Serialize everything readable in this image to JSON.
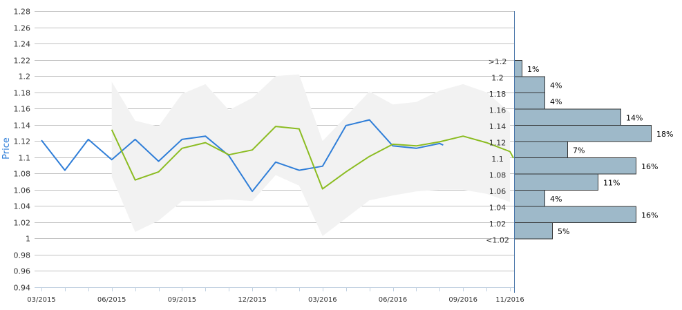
{
  "chart_data": {
    "type": "line",
    "ylabel": "Price",
    "ylim": [
      0.94,
      1.28
    ],
    "y_ticks": [
      "0.94",
      "0.96",
      "0.98",
      "1",
      "1.02",
      "1.04",
      "1.06",
      "1.08",
      "1.1",
      "1.12",
      "1.14",
      "1.16",
      "1.18",
      "1.2",
      "1.22",
      "1.24",
      "1.26",
      "1.28"
    ],
    "x_tick_labels": [
      "03/2015",
      "06/2015",
      "09/2015",
      "12/2015",
      "03/2016",
      "06/2016",
      "09/2016",
      "11/2016"
    ],
    "grid": true,
    "colors": {
      "blue": "#2f7ed8",
      "green": "#8bbc21",
      "band": "#f2f2f2",
      "hist_fill": "#9eb9c9",
      "hist_stroke": "#333333",
      "grid": "#c0c0c0"
    },
    "series": [
      {
        "x": [
          "03/2015",
          "04/2015",
          "05/2015",
          "06/2015",
          "07/2015",
          "08/2015",
          "09/2015",
          "10/2015",
          "11/2015",
          "12/2015",
          "01/2016",
          "02/2016",
          "03/2016",
          "04/2016",
          "05/2016",
          "06/2016",
          "07/2016",
          "08/2016",
          "08/2016b"
        ],
        "values": [
          1.121,
          1.084,
          1.122,
          1.097,
          1.122,
          1.095,
          1.122,
          1.126,
          1.102,
          1.058,
          1.094,
          1.084,
          1.089,
          1.139,
          1.146,
          1.114,
          1.111,
          1.117,
          1.115
        ]
      },
      {
        "x": [
          "06/2015",
          "07/2015",
          "08/2015",
          "09/2015",
          "10/2015",
          "11/2015",
          "12/2015",
          "01/2016",
          "02/2016",
          "03/2016",
          "04/2016",
          "05/2016",
          "06/2016",
          "07/2016",
          "08/2016",
          "09/2016",
          "10/2016",
          "11/2016",
          "11/2016b"
        ],
        "values": [
          1.134,
          1.072,
          1.082,
          1.111,
          1.118,
          1.103,
          1.109,
          1.138,
          1.135,
          1.061,
          1.082,
          1.101,
          1.116,
          1.114,
          1.119,
          1.126,
          1.118,
          1.107,
          1.099
        ]
      }
    ],
    "band": {
      "x": [
        "06/2015",
        "07/2015",
        "08/2015",
        "09/2015",
        "10/2015",
        "11/2015",
        "12/2015",
        "01/2016",
        "02/2016",
        "03/2016",
        "04/2016",
        "05/2016",
        "06/2016",
        "07/2016",
        "08/2016",
        "09/2016",
        "10/2016",
        "11/2016"
      ],
      "upper": [
        1.193,
        1.145,
        1.138,
        1.178,
        1.19,
        1.158,
        1.173,
        1.2,
        1.202,
        1.12,
        1.15,
        1.181,
        1.165,
        1.168,
        1.182,
        1.19,
        1.18,
        1.155
      ],
      "lower": [
        1.076,
        1.008,
        1.022,
        1.046,
        1.046,
        1.048,
        1.046,
        1.078,
        1.065,
        1.003,
        1.025,
        1.047,
        1.053,
        1.058,
        1.06,
        1.06,
        1.055,
        1.045
      ]
    },
    "histogram": {
      "bins": [
        ">1.2",
        "1.2",
        "1.18",
        "1.16",
        "1.14",
        "1.12",
        "1.1",
        "1.08",
        "1.06",
        "1.04",
        "1.02",
        "<1.02"
      ],
      "percents": [
        1,
        4,
        4,
        14,
        18,
        7,
        16,
        11,
        4,
        16,
        5,
        null
      ],
      "labels": [
        "1%",
        "4%",
        "4%",
        "14%",
        "18%",
        "7%",
        "16%",
        "11%",
        "4%",
        "16%",
        "5%",
        ""
      ]
    }
  }
}
